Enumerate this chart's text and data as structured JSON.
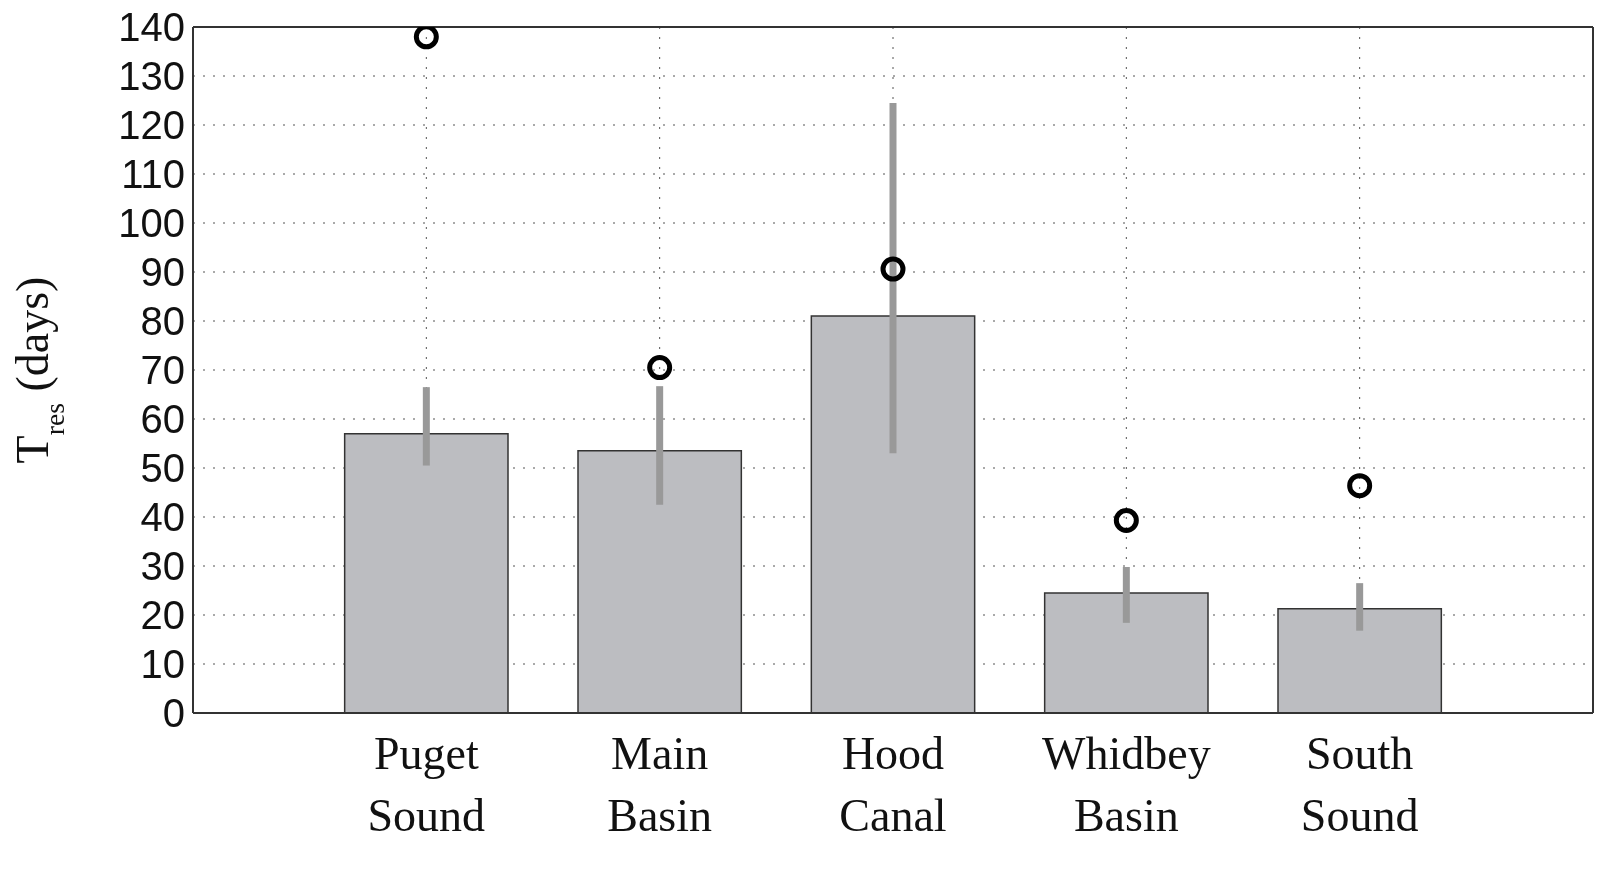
{
  "chart_data": {
    "type": "bar",
    "ylabel": "T$_{res}$ (days)",
    "categories": [
      "Puget Sound",
      "Main Basin",
      "Hood Canal",
      "Whidbey Basin",
      "South Sound"
    ],
    "series": [
      {
        "color": "#bcbdc1",
        "values": [
          57,
          53.5,
          81,
          24.5,
          21.3
        ],
        "errors": [
          [
            50.5,
            66.5
          ],
          [
            42.5,
            66.7
          ],
          [
            53,
            124.5
          ],
          [
            18.4,
            29.8
          ],
          [
            16.8,
            26.5
          ]
        ]
      },
      {
        "type": "scatter",
        "color": "#000000",
        "marker": "circle",
        "x": [
          "Puget Sound",
          "Main Basin",
          "Hood Canal",
          "Whidbey Basin",
          "South Sound"
        ],
        "values": [
          138,
          70.5,
          90.6,
          39.3,
          46.4
        ]
      }
    ],
    "ylim": [
      0,
      140
    ],
    "yticks": [
      0,
      10,
      20,
      30,
      40,
      50,
      60,
      70,
      80,
      90,
      100,
      110,
      120,
      130,
      140
    ],
    "grid": true,
    "legend": false
  }
}
